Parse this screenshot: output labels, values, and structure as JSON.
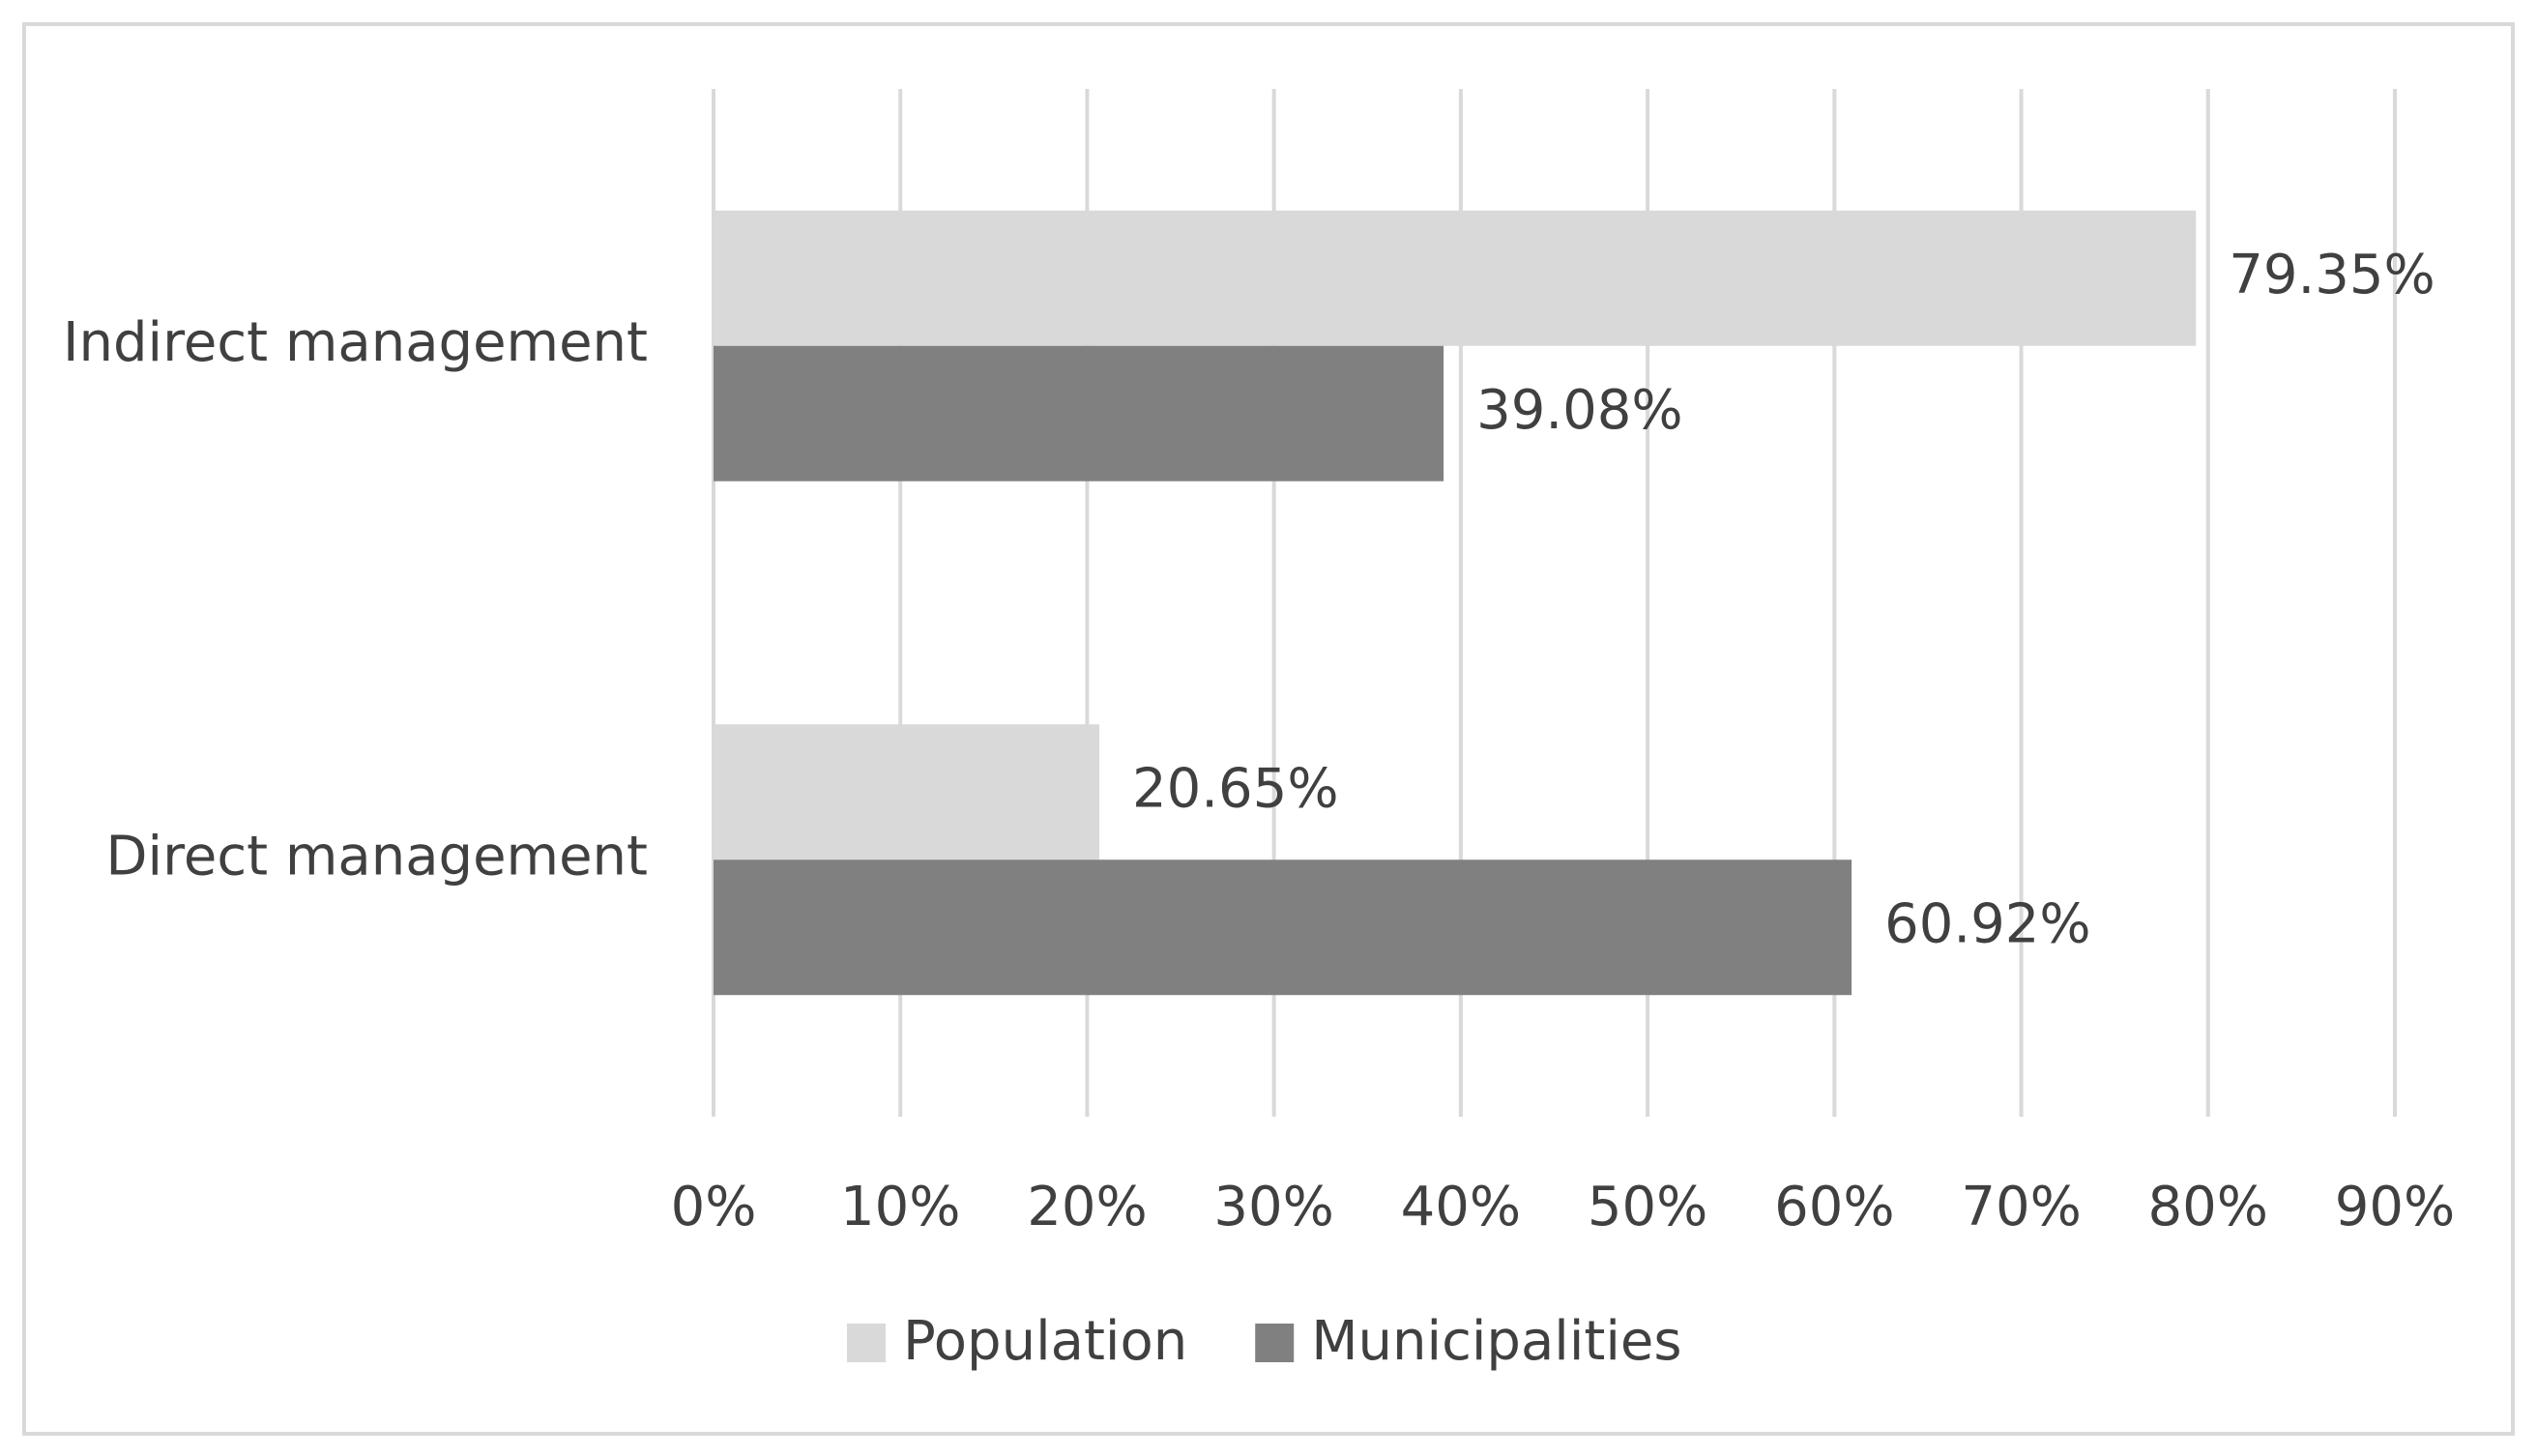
{
  "chart_data": {
    "type": "bar",
    "orientation": "horizontal",
    "categories": [
      "Indirect management",
      "Direct management"
    ],
    "series": [
      {
        "name": "Population",
        "color": "#d9d9d9",
        "values": [
          79.35,
          20.65
        ],
        "value_labels": [
          "79.35%",
          "20.65%"
        ]
      },
      {
        "name": "Municipalities",
        "color": "#808080",
        "values": [
          39.08,
          60.92
        ],
        "value_labels": [
          "39.08%",
          "60.92%"
        ]
      }
    ],
    "xlim": [
      0,
      90
    ],
    "xticks": [
      {
        "value": 0,
        "label": "0%"
      },
      {
        "value": 10,
        "label": "10%"
      },
      {
        "value": 20,
        "label": "20%"
      },
      {
        "value": 30,
        "label": "30%"
      },
      {
        "value": 40,
        "label": "40%"
      },
      {
        "value": 50,
        "label": "50%"
      },
      {
        "value": 60,
        "label": "60%"
      },
      {
        "value": 70,
        "label": "70%"
      },
      {
        "value": 80,
        "label": "80%"
      },
      {
        "value": 90,
        "label": "90%"
      }
    ],
    "grid": true,
    "legend": "bottom"
  }
}
